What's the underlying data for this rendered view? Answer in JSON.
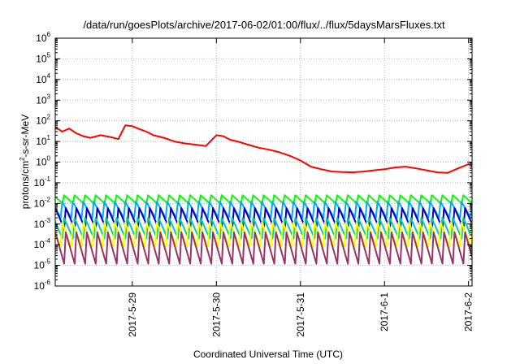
{
  "chart_data": {
    "type": "line",
    "title": "/data/run/goesPlots/archive/2017-06-02/01:00/flux/../flux/5daysMarsFluxes.txt",
    "xlabel": "Coordinated Universal Time (UTC)",
    "ylabel": "protons/cm2-s-sr-MeV",
    "ylabel_parts": {
      "pre": "protons/cm",
      "sup": "2",
      "post": "-s-sr-MeV"
    },
    "y_scale": "log",
    "ylim": [
      1e-06,
      1000000.0
    ],
    "y_ticks": [
      {
        "exp": -6,
        "base": "10",
        "sup": "-6"
      },
      {
        "exp": -5,
        "base": "10",
        "sup": "-5"
      },
      {
        "exp": -4,
        "base": "10",
        "sup": "-4"
      },
      {
        "exp": -3,
        "base": "10",
        "sup": "-3"
      },
      {
        "exp": -2,
        "base": "10",
        "sup": "-2"
      },
      {
        "exp": -1,
        "base": "10",
        "sup": "-1"
      },
      {
        "exp": 0,
        "base": "10",
        "sup": "0"
      },
      {
        "exp": 1,
        "base": "10",
        "sup": "1"
      },
      {
        "exp": 2,
        "base": "10",
        "sup": "2"
      },
      {
        "exp": 3,
        "base": "10",
        "sup": "3"
      },
      {
        "exp": 4,
        "base": "10",
        "sup": "4"
      },
      {
        "exp": 5,
        "base": "10",
        "sup": "5"
      },
      {
        "exp": 6,
        "base": "10",
        "sup": "6"
      }
    ],
    "xlim": [
      "2017-05-28T02:00",
      "2017-06-02T01:00"
    ],
    "x_ticks": [
      {
        "label": "2017-5-29",
        "t": "2017-05-29T00:00"
      },
      {
        "label": "2017-5-30",
        "t": "2017-05-30T00:00"
      },
      {
        "label": "2017-5-31",
        "t": "2017-05-31T00:00"
      },
      {
        "label": "2017-6-1",
        "t": "2017-06-01T00:00"
      },
      {
        "label": "2017-6-2",
        "t": "2017-06-02T00:00"
      }
    ],
    "grid": true,
    "series": [
      {
        "color": "#ff0000",
        "kind": "line",
        "x": [
          "2017-05-28T02:00",
          "2017-05-28T04:00",
          "2017-05-28T06:00",
          "2017-05-28T08:00",
          "2017-05-28T10:00",
          "2017-05-28T12:00",
          "2017-05-28T15:00",
          "2017-05-28T18:00",
          "2017-05-28T20:00",
          "2017-05-28T22:00",
          "2017-05-29T00:00",
          "2017-05-29T02:00",
          "2017-05-29T04:00",
          "2017-05-29T06:00",
          "2017-05-29T09:00",
          "2017-05-29T12:00",
          "2017-05-29T15:00",
          "2017-05-29T18:00",
          "2017-05-29T21:00",
          "2017-05-30T00:00",
          "2017-05-30T02:00",
          "2017-05-30T04:00",
          "2017-05-30T06:00",
          "2017-05-30T09:00",
          "2017-05-30T12:00",
          "2017-05-30T15:00",
          "2017-05-30T18:00",
          "2017-05-30T21:00",
          "2017-05-31T00:00",
          "2017-05-31T03:00",
          "2017-05-31T06:00",
          "2017-05-31T09:00",
          "2017-05-31T12:00",
          "2017-05-31T15:00",
          "2017-05-31T18:00",
          "2017-05-31T21:00",
          "2017-06-01T00:00",
          "2017-06-01T03:00",
          "2017-06-01T06:00",
          "2017-06-01T09:00",
          "2017-06-01T12:00",
          "2017-06-01T15:00",
          "2017-06-01T18:00",
          "2017-06-01T21:00",
          "2017-06-02T00:00",
          "2017-06-02T01:00"
        ],
        "y": [
          50,
          30,
          42,
          25,
          18,
          15,
          20,
          16,
          13,
          60,
          55,
          40,
          30,
          20,
          15,
          10,
          8,
          7,
          6,
          20,
          18,
          12,
          10,
          7,
          5,
          4,
          3,
          2,
          1.2,
          0.6,
          0.45,
          0.35,
          0.33,
          0.32,
          0.35,
          0.4,
          0.45,
          0.55,
          0.6,
          0.5,
          0.4,
          0.32,
          0.3,
          0.5,
          0.8,
          0.7
        ]
      },
      {
        "color": "#00ff00",
        "kind": "sawtooth",
        "hi": 0.025,
        "lo": 0.01,
        "period_hours": 3
      },
      {
        "color": "#00aaff",
        "kind": "sawtooth",
        "hi": 0.012,
        "lo": 0.002,
        "period_hours": 3
      },
      {
        "color": "#0000cc",
        "kind": "sawtooth",
        "hi": 0.006,
        "lo": 0.0006,
        "period_hours": 3
      },
      {
        "color": "#00ccaa",
        "kind": "sawtooth",
        "hi": 0.002,
        "lo": 0.0002,
        "period_hours": 3
      },
      {
        "color": "#ffff00",
        "kind": "sawtooth",
        "hi": 0.0012,
        "lo": 8e-05,
        "period_hours": 3
      },
      {
        "color": "#993366",
        "kind": "sawtooth",
        "hi": 0.0004,
        "lo": 1.2e-05,
        "period_hours": 3
      }
    ]
  }
}
